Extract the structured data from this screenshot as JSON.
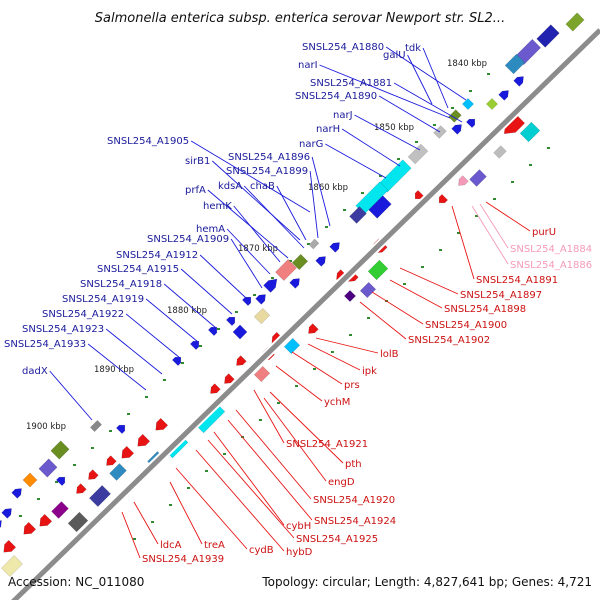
{
  "title": "Salmonella enterica subsp. enterica serovar Newport str. SL2...",
  "footer": {
    "accession": "Accession: NC_011080",
    "summary": "Topology: circular; Length: 4,827,641 bp; Genes: 4,721"
  },
  "colors": {
    "forward": "#1a1adc",
    "reverse": "#e81414",
    "faded": "#f49ab8",
    "backbone": "#8c8c8c"
  },
  "kbp_ticks": [
    "1840 kbp",
    "1850 kbp",
    "1860 kbp",
    "1870 kbp",
    "1880 kbp",
    "1890 kbp",
    "1900 kbp"
  ],
  "labels_forward": [
    "SNSL254_A1880",
    "galU",
    "tdk",
    "narI",
    "SNSL254_A1881",
    "SNSL254_A1890",
    "narJ",
    "narH",
    "narG",
    "SNSL254_A1905",
    "sirB1",
    "SNSL254_A1896",
    "SNSL254_A1899",
    "kdsA",
    "chaB",
    "prfA",
    "hemK",
    "hemA",
    "SNSL254_A1909",
    "SNSL254_A1912",
    "SNSL254_A1915",
    "SNSL254_A1918",
    "SNSL254_A1919",
    "SNSL254_A1922",
    "SNSL254_A1923",
    "SNSL254_A1933",
    "dadX"
  ],
  "labels_reverse": [
    "purU",
    "SNSL254_A1884",
    "SNSL254_A1886",
    "SNSL254_A1891",
    "SNSL254_A1897",
    "SNSL254_A1898",
    "SNSL254_A1900",
    "SNSL254_A1902",
    "lolB",
    "ipk",
    "prs",
    "ychM",
    "SNSL254_A1921",
    "pth",
    "engD",
    "SNSL254_A1920",
    "SNSL254_A1924",
    "cybH",
    "SNSL254_A1925",
    "hybD",
    "cydB",
    "treA",
    "ldcA",
    "SNSL254_A1939"
  ]
}
